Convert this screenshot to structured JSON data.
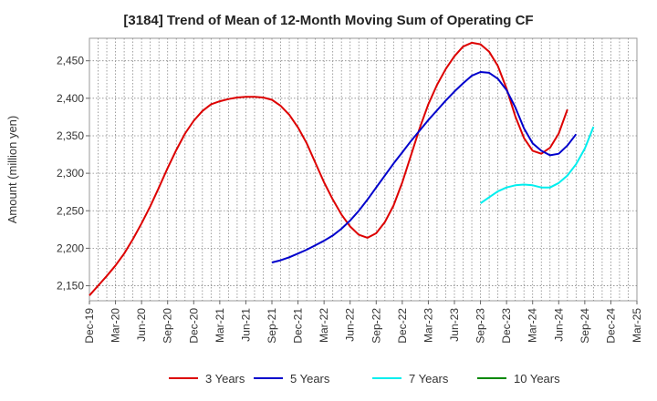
{
  "chart_data": {
    "type": "line",
    "title": "[3184]  Trend of Mean of 12-Month Moving Sum of Operating CF",
    "xlabel": "",
    "ylabel": "Amount (million yen)",
    "ylim": [
      2130,
      2480
    ],
    "yticks": [
      2150,
      2200,
      2250,
      2300,
      2350,
      2400,
      2450
    ],
    "ytick_labels": [
      "2,150",
      "2,200",
      "2,250",
      "2,300",
      "2,350",
      "2,400",
      "2,450"
    ],
    "x_ticks": [
      "Dec-19",
      "Mar-20",
      "Jun-20",
      "Sep-20",
      "Dec-20",
      "Mar-21",
      "Jun-21",
      "Sep-21",
      "Dec-21",
      "Mar-22",
      "Jun-22",
      "Sep-22",
      "Dec-22",
      "Mar-23",
      "Jun-23",
      "Sep-23",
      "Dec-23",
      "Mar-24",
      "Jun-24",
      "Sep-24",
      "Dec-24",
      "Mar-25"
    ],
    "x_ticks_extra": "Mar-25",
    "grid": true,
    "legend_position": "bottom",
    "series": [
      {
        "name": "3 Years",
        "color": "#dd0000",
        "start_index": 0,
        "values": [
          2137,
          2150,
          2163,
          2177,
          2193,
          2212,
          2233,
          2256,
          2281,
          2307,
          2331,
          2353,
          2370,
          2383,
          2392,
          2396,
          2399,
          2401,
          2402,
          2402,
          2401,
          2398,
          2390,
          2378,
          2361,
          2340,
          2314,
          2288,
          2265,
          2245,
          2229,
          2218,
          2214,
          2220,
          2235,
          2257,
          2288,
          2324,
          2360,
          2392,
          2418,
          2439,
          2456,
          2469,
          2474,
          2472,
          2462,
          2443,
          2413,
          2376,
          2347,
          2330,
          2326,
          2334,
          2353,
          2385
        ]
      },
      {
        "name": "5 Years",
        "color": "#0000cc",
        "start_index": 21,
        "values": [
          2181,
          2184,
          2188,
          2193,
          2198,
          2204,
          2210,
          2217,
          2226,
          2237,
          2250,
          2265,
          2281,
          2297,
          2313,
          2328,
          2343,
          2357,
          2371,
          2384,
          2397,
          2409,
          2420,
          2430,
          2435,
          2434,
          2426,
          2411,
          2388,
          2360,
          2340,
          2330,
          2324,
          2326,
          2337,
          2352
        ]
      },
      {
        "name": "7 Years",
        "color": "#00eeee",
        "start_index": 45,
        "values": [
          2260,
          2268,
          2276,
          2281,
          2284,
          2285,
          2284,
          2281,
          2281,
          2287,
          2297,
          2312,
          2333,
          2362
        ]
      },
      {
        "name": "10 Years",
        "color": "#008800",
        "start_index": 0,
        "values": []
      }
    ]
  }
}
